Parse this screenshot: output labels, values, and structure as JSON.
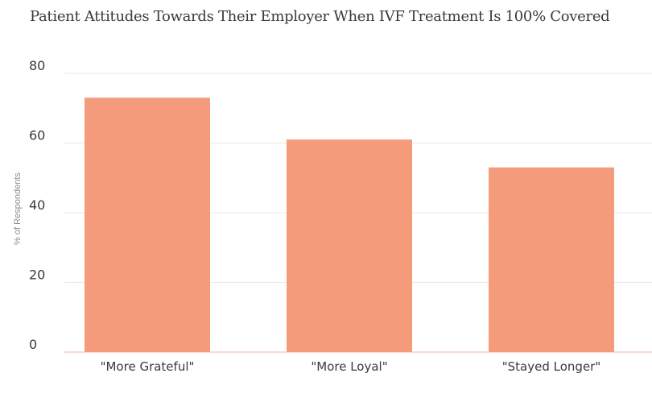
{
  "chart_data": {
    "type": "bar",
    "title": "Patient Attitudes Towards Their Employer When IVF Treatment Is 100% Covered",
    "xlabel": "",
    "ylabel": "% of Respondents",
    "categories": [
      "\"More Grateful\"",
      "\"More Loyal\"",
      "\"Stayed Longer\""
    ],
    "values": [
      73,
      61,
      53
    ],
    "ylim": [
      0,
      80
    ],
    "yticks": [
      0,
      20,
      40,
      60,
      80
    ],
    "grid": true,
    "bar_color": "#f49b7c",
    "grid_color": "#f7e3dc",
    "axis_color": "#f2cfc2"
  }
}
